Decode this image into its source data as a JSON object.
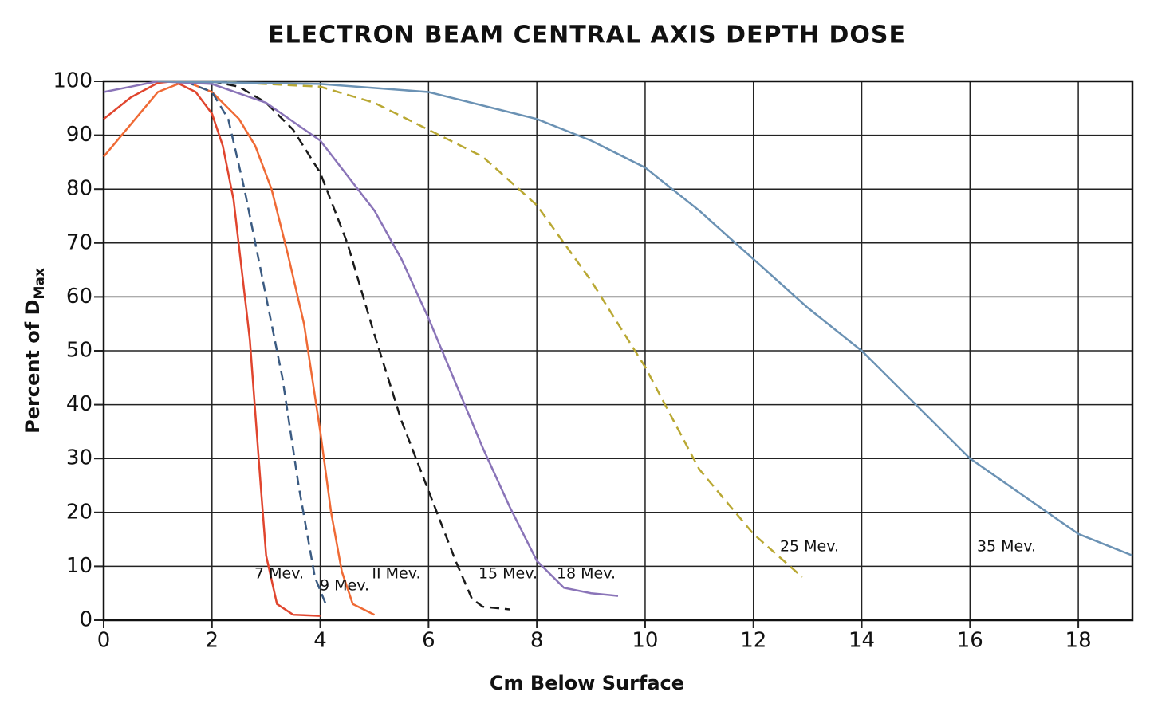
{
  "chart_data": {
    "type": "line",
    "title": "ELECTRON BEAM CENTRAL AXIS DEPTH DOSE",
    "x_label": "Cm Below Surface",
    "y_label": "Percent of D",
    "y_label_subscript": "Max",
    "xlim": [
      0,
      19
    ],
    "ylim": [
      0,
      100
    ],
    "xticks": [
      0,
      2,
      4,
      6,
      8,
      10,
      12,
      14,
      16,
      18
    ],
    "yticks": [
      0,
      10,
      20,
      30,
      40,
      50,
      60,
      70,
      80,
      90,
      100
    ],
    "grid": true,
    "series": [
      {
        "name": "7 Mev.",
        "color": "#e0452e",
        "dashed": false,
        "x": [
          0,
          0.5,
          1,
          1.3,
          1.7,
          2,
          2.2,
          2.4,
          2.7,
          2.9,
          3.0,
          3.2,
          3.5,
          4
        ],
        "values": [
          93,
          97,
          99.7,
          100,
          98,
          94,
          88,
          78,
          52,
          25,
          12,
          3,
          1,
          0.8
        ]
      },
      {
        "name": "II Mev.",
        "color": "#ef6a35",
        "dashed": false,
        "x": [
          0,
          0.5,
          1,
          1.5,
          2,
          2.5,
          2.8,
          3.1,
          3.4,
          3.7,
          4,
          4.2,
          4.4,
          4.6,
          5
        ],
        "values": [
          86,
          92,
          98,
          100,
          98,
          93,
          88,
          80,
          68,
          55,
          35,
          20,
          9,
          3,
          1
        ]
      },
      {
        "name": "9 Mev.",
        "color": "#3b5b82",
        "dashed": true,
        "x": [
          1.5,
          2,
          2.3,
          2.6,
          3,
          3.3,
          3.6,
          3.9,
          4.1
        ],
        "values": [
          100,
          98,
          93,
          80,
          60,
          45,
          25,
          8,
          3
        ]
      },
      {
        "name": "15 Mev.",
        "color": "#1a1a1a",
        "dashed": true,
        "x": [
          2,
          2.5,
          3,
          3.5,
          4,
          4.5,
          5,
          5.5,
          6,
          6.5,
          6.8,
          7,
          7.5
        ],
        "values": [
          100,
          99,
          96,
          91,
          83,
          70,
          53,
          37,
          24,
          11,
          4,
          2.5,
          2
        ]
      },
      {
        "name": "18 Mev.",
        "color": "#8a74b8",
        "dashed": false,
        "x": [
          0,
          0.5,
          1,
          2,
          3,
          4,
          5,
          5.5,
          6,
          6.5,
          7,
          7.5,
          8,
          8.5,
          9,
          9.5
        ],
        "values": [
          98,
          99,
          100,
          99.5,
          96,
          89,
          76,
          67,
          56,
          44,
          32,
          21,
          11,
          6,
          5,
          4.5
        ]
      },
      {
        "name": "25 Mev.",
        "color": "#b9a833",
        "dashed": true,
        "x": [
          2,
          4,
          5,
          6,
          7,
          8,
          9,
          10,
          11,
          12,
          12.9
        ],
        "values": [
          100,
          99,
          96,
          91,
          86,
          77,
          63,
          47,
          28,
          16,
          8
        ]
      },
      {
        "name": "35 Mev.",
        "color": "#6b92b4",
        "dashed": false,
        "x": [
          1,
          4,
          6,
          8,
          9,
          10,
          11,
          12,
          13,
          14,
          15,
          16,
          17,
          18,
          19
        ],
        "values": [
          100,
          99.5,
          98,
          93,
          89,
          84,
          76,
          67,
          58,
          50,
          40,
          30,
          23,
          16,
          12
        ]
      }
    ]
  }
}
